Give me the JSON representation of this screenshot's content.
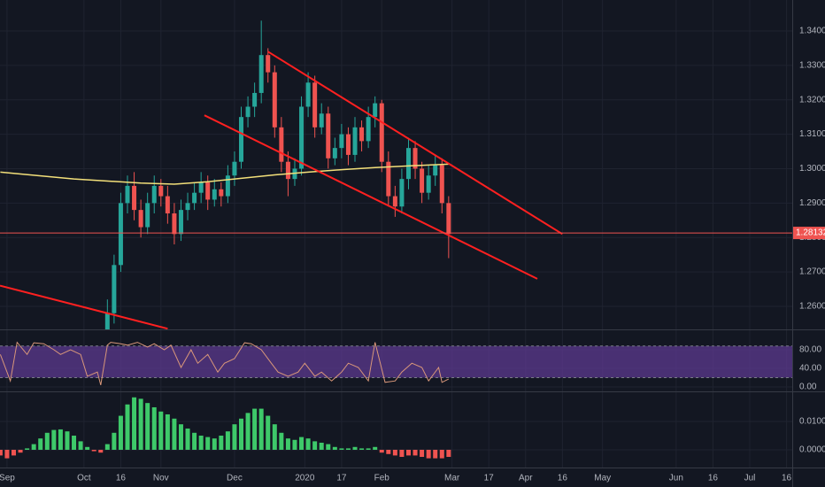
{
  "x_axis": {
    "xlim": [
      -2.1,
      234.7
    ],
    "xticks": [
      {
        "value": 0,
        "label": "Sep"
      },
      {
        "value": 23,
        "label": "Oct"
      },
      {
        "value": 34,
        "label": "16"
      },
      {
        "value": 46,
        "label": "Nov"
      },
      {
        "value": 68,
        "label": "Dec"
      },
      {
        "value": 89,
        "label": "2020"
      },
      {
        "value": 100,
        "label": "17"
      },
      {
        "value": 112,
        "label": "Feb"
      },
      {
        "value": 133,
        "label": "Mar"
      },
      {
        "value": 144,
        "label": "17"
      },
      {
        "value": 155,
        "label": "Apr"
      },
      {
        "value": 166,
        "label": "16"
      },
      {
        "value": 178,
        "label": "May"
      },
      {
        "value": 200,
        "label": "Jun"
      },
      {
        "value": 211,
        "label": "16"
      },
      {
        "value": 222,
        "label": "Jul"
      },
      {
        "value": 233,
        "label": "16"
      }
    ]
  },
  "chart_data": [
    {
      "type": "candlestick",
      "up_color": "#26a69a",
      "down_color": "#ef5350",
      "ylim": [
        1.2533,
        1.349
      ],
      "yticks": [
        {
          "value": 1.26,
          "label": "1.26000"
        },
        {
          "value": 1.27,
          "label": "1.27000"
        },
        {
          "value": 1.28,
          "label": "1.28000"
        },
        {
          "value": 1.29,
          "label": "1.29000"
        },
        {
          "value": 1.3,
          "label": "1.30000"
        },
        {
          "value": 1.31,
          "label": "1.31000"
        },
        {
          "value": 1.32,
          "label": "1.32000"
        },
        {
          "value": 1.33,
          "label": "1.33000"
        },
        {
          "value": 1.34,
          "label": "1.34000"
        }
      ],
      "x": [
        30,
        32,
        34,
        36,
        38,
        40,
        42,
        44,
        46,
        48,
        50,
        52,
        54,
        56,
        58,
        60,
        62,
        64,
        66,
        68,
        70,
        72,
        74,
        76,
        78,
        80,
        82,
        84,
        86,
        88,
        90,
        92,
        94,
        96,
        98,
        100,
        102,
        104,
        106,
        108,
        110,
        112,
        114,
        116,
        118,
        120,
        122,
        124,
        126,
        128,
        130,
        132
      ],
      "open": [
        1.252,
        1.258,
        1.272,
        1.29,
        1.295,
        1.288,
        1.283,
        1.29,
        1.295,
        1.292,
        1.287,
        1.281,
        1.288,
        1.29,
        1.293,
        1.296,
        1.291,
        1.294,
        1.292,
        1.298,
        1.302,
        1.315,
        1.318,
        1.322,
        1.333,
        1.328,
        1.312,
        1.302,
        1.297,
        1.3,
        1.318,
        1.325,
        1.312,
        1.316,
        1.303,
        1.306,
        1.31,
        1.304,
        1.312,
        1.308,
        1.315,
        1.319,
        1.302,
        1.292,
        1.289,
        1.297,
        1.306,
        1.3,
        1.293,
        1.298,
        1.301,
        1.29
      ],
      "high": [
        1.262,
        1.275,
        1.293,
        1.298,
        1.299,
        1.291,
        1.293,
        1.298,
        1.297,
        1.295,
        1.29,
        1.291,
        1.293,
        1.296,
        1.299,
        1.298,
        1.297,
        1.296,
        1.301,
        1.305,
        1.318,
        1.321,
        1.325,
        1.343,
        1.335,
        1.33,
        1.315,
        1.305,
        1.303,
        1.321,
        1.328,
        1.327,
        1.319,
        1.318,
        1.309,
        1.313,
        1.312,
        1.315,
        1.314,
        1.318,
        1.321,
        1.32,
        1.305,
        1.295,
        1.3,
        1.309,
        1.308,
        1.302,
        1.301,
        1.304,
        1.303,
        1.292
      ],
      "low": [
        1.249,
        1.255,
        1.27,
        1.287,
        1.285,
        1.28,
        1.281,
        1.287,
        1.289,
        1.284,
        1.278,
        1.279,
        1.285,
        1.288,
        1.29,
        1.288,
        1.289,
        1.289,
        1.29,
        1.295,
        1.3,
        1.312,
        1.315,
        1.319,
        1.325,
        1.309,
        1.299,
        1.292,
        1.295,
        1.298,
        1.315,
        1.309,
        1.31,
        1.3,
        1.301,
        1.303,
        1.301,
        1.302,
        1.305,
        1.306,
        1.312,
        1.299,
        1.289,
        1.286,
        1.287,
        1.294,
        1.297,
        1.29,
        1.291,
        1.295,
        1.287,
        1.274
      ],
      "close": [
        1.258,
        1.272,
        1.29,
        1.295,
        1.288,
        1.283,
        1.29,
        1.295,
        1.292,
        1.287,
        1.281,
        1.288,
        1.29,
        1.293,
        1.296,
        1.291,
        1.294,
        1.292,
        1.298,
        1.302,
        1.315,
        1.318,
        1.322,
        1.333,
        1.328,
        1.312,
        1.302,
        1.297,
        1.3,
        1.318,
        1.325,
        1.312,
        1.316,
        1.303,
        1.306,
        1.31,
        1.304,
        1.312,
        1.308,
        1.315,
        1.319,
        1.302,
        1.292,
        1.289,
        1.297,
        1.306,
        1.3,
        1.293,
        1.298,
        1.301,
        1.29,
        1.281
      ],
      "ma": {
        "color": "#f3e07a",
        "x": [
          -2,
          20,
          40,
          50,
          60,
          70,
          80,
          90,
          100,
          110,
          120,
          132
        ],
        "values": [
          1.299,
          1.297,
          1.2958,
          1.2955,
          1.2962,
          1.2972,
          1.2982,
          1.299,
          1.2997,
          1.3003,
          1.3008,
          1.3013
        ]
      },
      "lines": [
        {
          "color": "#ff2020",
          "x": [
            78,
            166
          ],
          "values": [
            1.334,
            1.281
          ]
        },
        {
          "color": "#ff2020",
          "x": [
            59,
            158.5
          ],
          "values": [
            1.3155,
            1.268
          ]
        },
        {
          "color": "#ff2020",
          "x": [
            -2.1,
            48
          ],
          "values": [
            1.266,
            1.2535
          ]
        }
      ],
      "last_price": 1.28132,
      "last_price_color": "#ef5350"
    },
    {
      "type": "line",
      "color": "#d9977a",
      "ylim": [
        -9.5,
        121.9
      ],
      "band": [
        20,
        88
      ],
      "band_color": "#5c3a8f",
      "yticks": [
        {
          "value": 0,
          "label": "0.00"
        },
        {
          "value": 40,
          "label": "40.00"
        },
        {
          "value": 80,
          "label": "80.00"
        }
      ],
      "x": [
        -2,
        1,
        3,
        6,
        8,
        11,
        14,
        16,
        19,
        22,
        24,
        27,
        28,
        30,
        31,
        34,
        36,
        39,
        42,
        44,
        47,
        49,
        52,
        55,
        57,
        60,
        63,
        65,
        68,
        71,
        73,
        76,
        79,
        81,
        84,
        87,
        89,
        92,
        94,
        97,
        100,
        102,
        105,
        108,
        110,
        113,
        116,
        118,
        121,
        124,
        126,
        129,
        130,
        132
      ],
      "values": [
        70,
        13,
        96,
        70,
        95,
        93,
        80,
        70,
        80,
        70,
        23,
        32,
        4,
        90,
        96,
        93,
        90,
        96,
        86,
        93,
        80,
        90,
        42,
        80,
        51,
        70,
        32,
        51,
        61,
        95,
        93,
        80,
        51,
        32,
        23,
        32,
        51,
        23,
        32,
        13,
        32,
        51,
        42,
        13,
        96,
        10,
        13,
        32,
        51,
        42,
        13,
        42,
        10,
        17
      ]
    },
    {
      "type": "bar",
      "up_color": "#3ec96a",
      "down_color": "#ef5350",
      "ylim": [
        -0.00625,
        0.0203
      ],
      "yticks": [
        {
          "value": 0,
          "label": "0.00000"
        },
        {
          "value": 0.01,
          "label": "0.01000"
        }
      ],
      "x": [
        -2,
        0,
        2,
        4,
        6,
        8,
        10,
        12,
        14,
        16,
        18,
        20,
        22,
        24,
        26,
        28,
        30,
        32,
        34,
        36,
        38,
        40,
        42,
        44,
        46,
        48,
        50,
        52,
        54,
        56,
        58,
        60,
        62,
        64,
        66,
        68,
        70,
        72,
        74,
        76,
        78,
        80,
        82,
        84,
        86,
        88,
        90,
        92,
        94,
        96,
        98,
        100,
        102,
        104,
        106,
        108,
        110,
        112,
        114,
        116,
        118,
        120,
        122,
        124,
        126,
        128,
        130,
        132
      ],
      "values": [
        -0.002,
        -0.003,
        -0.002,
        -0.001,
        0.0005,
        0.002,
        0.004,
        0.006,
        0.007,
        0.0072,
        0.0065,
        0.005,
        0.003,
        0.001,
        -0.0005,
        -0.001,
        0.002,
        0.006,
        0.012,
        0.016,
        0.0185,
        0.018,
        0.0165,
        0.015,
        0.0135,
        0.0125,
        0.011,
        0.009,
        0.0075,
        0.006,
        0.005,
        0.0045,
        0.004,
        0.005,
        0.0065,
        0.009,
        0.011,
        0.013,
        0.0145,
        0.0145,
        0.012,
        0.009,
        0.006,
        0.004,
        0.0035,
        0.0045,
        0.004,
        0.003,
        0.0025,
        0.002,
        0.001,
        0.0005,
        0.0005,
        0.001,
        0.0005,
        0.0005,
        0.001,
        -0.001,
        -0.0015,
        -0.002,
        -0.0025,
        -0.002,
        -0.002,
        -0.0025,
        -0.003,
        -0.003,
        -0.003,
        -0.0025
      ]
    }
  ]
}
